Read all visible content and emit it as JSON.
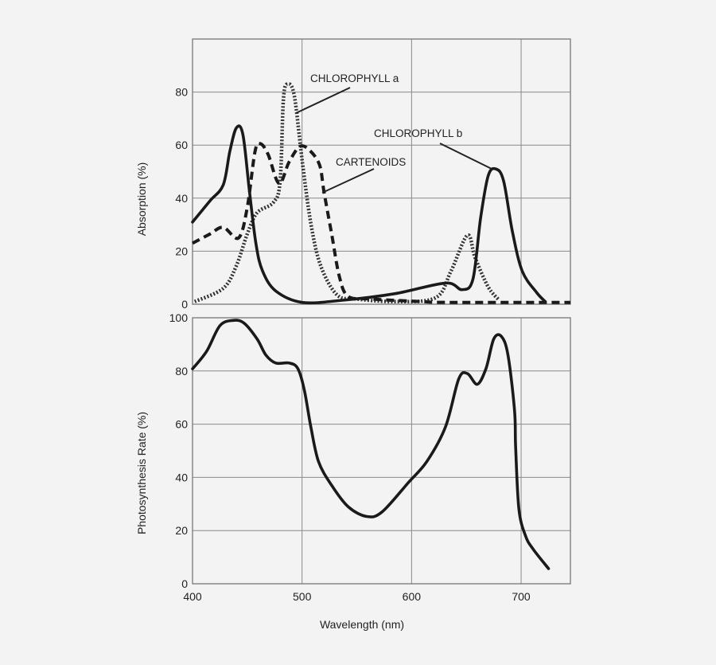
{
  "chart_data": [
    {
      "type": "line",
      "title": "",
      "xlabel": "",
      "ylabel": "Absorption (%)",
      "xlim": [
        400,
        745
      ],
      "ylim": [
        0,
        100
      ],
      "x_ticks": [],
      "y_ticks": [
        0,
        20,
        40,
        60,
        80
      ],
      "grid": true,
      "series": [
        {
          "name": "CHLOROPHYLL a",
          "style": "dotted",
          "color": "#333333",
          "points": [
            [
              402,
              1
            ],
            [
              428,
              6
            ],
            [
              440,
              14.5
            ],
            [
              450,
              26.5
            ],
            [
              459,
              34.5
            ],
            [
              474,
              38.5
            ],
            [
              480,
              46.5
            ],
            [
              483,
              77.5
            ],
            [
              487,
              83
            ],
            [
              493,
              78.5
            ],
            [
              500,
              54.5
            ],
            [
              508,
              30.5
            ],
            [
              517,
              14.5
            ],
            [
              532,
              3.5
            ],
            [
              549,
              2
            ],
            [
              585,
              1
            ],
            [
              622,
              2.5
            ],
            [
              636,
              12.5
            ],
            [
              651,
              26
            ],
            [
              658,
              17.5
            ],
            [
              670,
              6.5
            ],
            [
              680,
              1.5
            ]
          ]
        },
        {
          "name": "CHLOROPHYLL b",
          "style": "solid",
          "color": "#1a1a1a",
          "points": [
            [
              400,
              31
            ],
            [
              416,
              39
            ],
            [
              428,
              45
            ],
            [
              434,
              57.5
            ],
            [
              440,
              66.5
            ],
            [
              446,
              64
            ],
            [
              452,
              42.5
            ],
            [
              458,
              22.5
            ],
            [
              464,
              12.5
            ],
            [
              476,
              5
            ],
            [
              500,
              0.7
            ],
            [
              537,
              1.5
            ],
            [
              585,
              4
            ],
            [
              631,
              8
            ],
            [
              646,
              5.5
            ],
            [
              656,
              9.5
            ],
            [
              663,
              32.5
            ],
            [
              670,
              48.5
            ],
            [
              677,
              51
            ],
            [
              684,
              46.5
            ],
            [
              692,
              27.5
            ],
            [
              701,
              12.5
            ],
            [
              714,
              4.5
            ],
            [
              722,
              1
            ]
          ]
        },
        {
          "name": "CARTENOIDS",
          "style": "dashed",
          "color": "#1a1a1a",
          "points": [
            [
              400,
              23
            ],
            [
              416,
              26.5
            ],
            [
              428,
              29
            ],
            [
              442,
              25
            ],
            [
              450,
              36.5
            ],
            [
              457,
              57.5
            ],
            [
              462,
              60.5
            ],
            [
              469,
              56.5
            ],
            [
              479,
              45.5
            ],
            [
              488,
              53.5
            ],
            [
              498,
              59.5
            ],
            [
              507,
              58
            ],
            [
              516,
              52.5
            ],
            [
              520,
              42.5
            ],
            [
              527,
              26.5
            ],
            [
              534,
              10.5
            ],
            [
              542,
              3
            ],
            [
              561,
              2
            ],
            [
              609,
              1
            ],
            [
              634,
              0.7
            ],
            [
              745,
              0.7
            ]
          ]
        }
      ]
    },
    {
      "type": "line",
      "title": "",
      "xlabel": "Wavelength (nm)",
      "ylabel": "Photosynthesis Rate (%)",
      "xlim": [
        400,
        745
      ],
      "ylim": [
        0,
        100
      ],
      "x_ticks": [
        400,
        500,
        600,
        700
      ],
      "y_ticks": [
        0,
        20,
        40,
        60,
        80,
        100
      ],
      "grid": true,
      "series": [
        {
          "style": "solid",
          "color": "#1a1a1a",
          "points": [
            [
              400,
              80.8
            ],
            [
              413,
              87.5
            ],
            [
              425,
              97
            ],
            [
              437,
              99
            ],
            [
              447,
              98
            ],
            [
              459,
              92
            ],
            [
              467,
              86
            ],
            [
              476,
              83
            ],
            [
              488,
              83
            ],
            [
              496,
              81
            ],
            [
              502,
              73
            ],
            [
              508,
              59
            ],
            [
              515,
              46
            ],
            [
              527,
              37
            ],
            [
              542,
              29
            ],
            [
              559,
              25.3
            ],
            [
              573,
              27
            ],
            [
              597,
              38
            ],
            [
              614,
              46
            ],
            [
              631,
              59
            ],
            [
              643,
              77
            ],
            [
              651,
              79
            ],
            [
              660,
              75
            ],
            [
              668,
              81
            ],
            [
              675,
              92
            ],
            [
              682,
              93
            ],
            [
              688,
              86
            ],
            [
              694,
              65
            ],
            [
              695,
              51
            ],
            [
              698,
              28
            ],
            [
              704,
              18
            ],
            [
              711,
              13
            ],
            [
              725,
              5.7
            ]
          ]
        }
      ]
    }
  ]
}
